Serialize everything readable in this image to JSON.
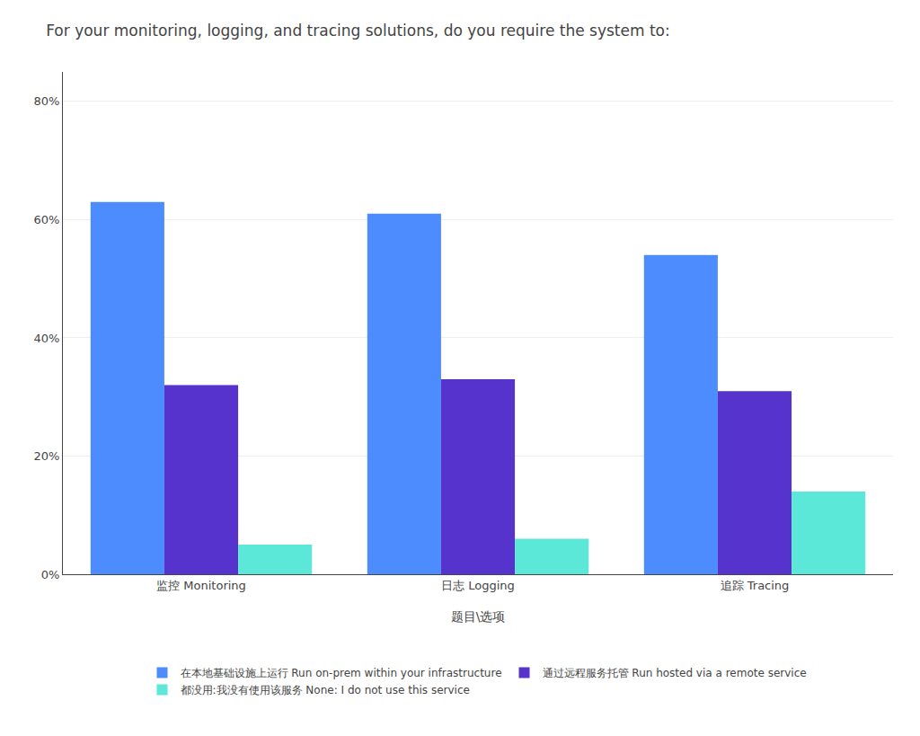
{
  "chart_data": {
    "type": "bar",
    "title": "For your monitoring, logging, and tracing solutions, do you require the system to:",
    "xlabel": "题目\\选项",
    "categories": [
      "监控 Monitoring",
      "日志 Logging",
      "追踪 Tracing"
    ],
    "series": [
      {
        "name": "在本地基础设施上运行 Run on-prem within your infrastructure",
        "color": "#4d8cff",
        "values": [
          63,
          61,
          54
        ]
      },
      {
        "name": "通过远程服务托管 Run hosted via a remote service",
        "color": "#5533cc",
        "values": [
          32,
          33,
          31
        ]
      },
      {
        "name": "都没用:我没有使用该服务 None: I do not use this service",
        "color": "#5ce8d8",
        "values": [
          5,
          6,
          14
        ]
      }
    ],
    "ylim": [
      0,
      85
    ],
    "yticks": [
      {
        "value": 0,
        "label": "0%"
      },
      {
        "value": 20,
        "label": "20%"
      },
      {
        "value": 40,
        "label": "40%"
      },
      {
        "value": 60,
        "label": "60%"
      },
      {
        "value": 80,
        "label": "80%"
      }
    ],
    "grid": true,
    "legend": "bottom"
  }
}
